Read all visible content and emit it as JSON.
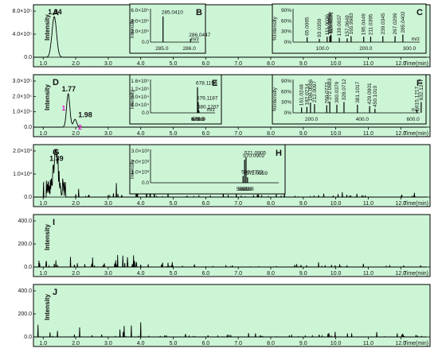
{
  "x_axis": {
    "label": "Time(min)",
    "ticks": [
      "1.0",
      "2.0",
      "3.0",
      "4.0",
      "5.0",
      "6.0",
      "7.0",
      "8.0",
      "9.0",
      "10.0",
      "11.0",
      "12.0"
    ],
    "range": [
      0.7,
      12.9
    ]
  },
  "colors": {
    "panel_bg": "#ccf5d6",
    "inset_bg": "#ccf5d6",
    "trace": "#000000",
    "annotation": "#e000c8"
  },
  "chart_data": [
    {
      "type": "line",
      "panel": "A",
      "ylabel": "Intensity",
      "yticks": [
        "8.0×10⁵",
        "4.0×10⁵",
        "0.0"
      ],
      "ylim": [
        0,
        1000000
      ],
      "peaks": [
        {
          "x": 1.34,
          "y": 850000,
          "label": "1.34"
        }
      ],
      "insets": [
        {
          "letter": "B",
          "type": "bar",
          "ylabel": "Intensity",
          "yticks": [
            "6.0×10⁵",
            "4.0×10⁵",
            "2.0×10⁵",
            "0.0"
          ],
          "xticks": [
            "285.0",
            "286.0"
          ],
          "xlabel": "m/z",
          "mz": [
            285.041,
            286.0447
          ],
          "intensity": [
            95,
            12
          ],
          "labels": [
            "285.0410",
            "286.0447"
          ]
        },
        {
          "letter": "C",
          "type": "bar",
          "ylabel": "%Intensity",
          "yticks": [
            "90%",
            "60%",
            "30%",
            "0%"
          ],
          "xticks": [
            "100.0",
            "200.0",
            "300.0"
          ],
          "xlabel": "m/z",
          "mz": [
            65.0065,
            93.0359,
            111.0036,
            117.0354,
            119.0504,
            120.0232,
            139.0037,
            157.0649,
            165.9983,
            195.0449,
            211.0395,
            239.0345,
            267.0299,
            285.0402
          ],
          "intensity": [
            18,
            12,
            20,
            22,
            25,
            27,
            16,
            14,
            22,
            20,
            20,
            22,
            22,
            28
          ],
          "labels": [
            "65.0065",
            "93.0359",
            "111.0036",
            "117.0354",
            "119.0504",
            "120.0232",
            "139.0037",
            "157.0649",
            "165.9983",
            "195.0449",
            "211.0395",
            "239.0345",
            "267.0299",
            "285.0402"
          ]
        }
      ]
    },
    {
      "type": "line",
      "panel": "D",
      "ylabel": "Intensity",
      "yticks": [
        "3.0×10⁵",
        "2.0×10⁵",
        "1.0×10⁵",
        "0.0"
      ],
      "ylim": [
        0,
        400000
      ],
      "peaks": [
        {
          "x": 1.77,
          "y": 280000,
          "label": "1.77",
          "marker": "1"
        },
        {
          "x": 1.98,
          "y": 65000,
          "label": "1.98",
          "marker": "2"
        }
      ],
      "insets": [
        {
          "letter": "E",
          "type": "bar",
          "ylabel": "Intensity",
          "yticks": [
            "1.6×10⁵",
            "1.2×10⁵",
            "8.0×10⁴",
            "4.0×10⁴",
            "0.0"
          ],
          "xticks": [
            "678.0",
            "679.0",
            "680.0"
          ],
          "xlabel": "m/z",
          "mz": [
            678.1156,
            679.1187,
            680.1207
          ],
          "intensity": [
            95,
            40,
            8
          ],
          "labels": [
            "678.1156",
            "679.1187",
            "680.1207"
          ]
        },
        {
          "letter": "F",
          "type": "bar",
          "ylabel": "%Intensity",
          "yticks": [
            "90%",
            "60%",
            "30%",
            "0%"
          ],
          "xticks": [
            "200.0",
            "400.0",
            "600.0"
          ],
          "xlabel": "m/z",
          "mz": [
            161.0248,
            182.0214,
            196.0006,
            212.0097,
            260.0773,
            272.0683,
            300.0379,
            328.0712,
            381.1017,
            429.0901,
            450.101,
            615.1217,
            632.1247
          ],
          "intensity": [
            20,
            22,
            38,
            32,
            28,
            42,
            30,
            40,
            30,
            25,
            15,
            12,
            40
          ],
          "labels": [
            "161.0248",
            "182.0214",
            "196.0006",
            "212.0097",
            "260.0773",
            "272.0683",
            "300.0379",
            "328.0712",
            "381.1017",
            "429.0901",
            "450.1010",
            "615.1217",
            "632.1247"
          ]
        }
      ]
    },
    {
      "type": "line",
      "panel": "G",
      "ylabel": "",
      "yticks": [
        "2.0×10³",
        "1.0×10³",
        "0.0"
      ],
      "ylim": [
        0,
        2400
      ],
      "peaks": [
        {
          "x": 1.39,
          "y": 1700,
          "label": "1.39"
        }
      ],
      "insets": [
        {
          "letter": "H",
          "type": "bar",
          "ylabel": "Intensity",
          "yticks": [
            "3.0×10³",
            "2.0×10³",
            "1.0×10³",
            "0.0"
          ],
          "xticks": [
            "569.0",
            "570.0",
            "571.0",
            "572.0"
          ],
          "xlabel": "",
          "mz": [
            569.0722,
            570.0902,
            571.0905,
            572.0959
          ],
          "intensity": [
            25,
            85,
            95,
            20
          ],
          "labels": [
            "569.0722",
            "570.0902",
            "571.0905",
            "572.0959"
          ]
        }
      ]
    },
    {
      "type": "line",
      "panel": "I",
      "ylabel": "Intensity",
      "yticks": [
        "400.0",
        "200.0",
        "0.0"
      ],
      "ylim": [
        0,
        520
      ],
      "peaks": [],
      "insets": []
    },
    {
      "type": "line",
      "panel": "J",
      "ylabel": "Intensity",
      "yticks": [
        "400.0",
        "200.0",
        "0.0"
      ],
      "ylim": [
        0,
        520
      ],
      "peaks": [],
      "insets": []
    }
  ]
}
